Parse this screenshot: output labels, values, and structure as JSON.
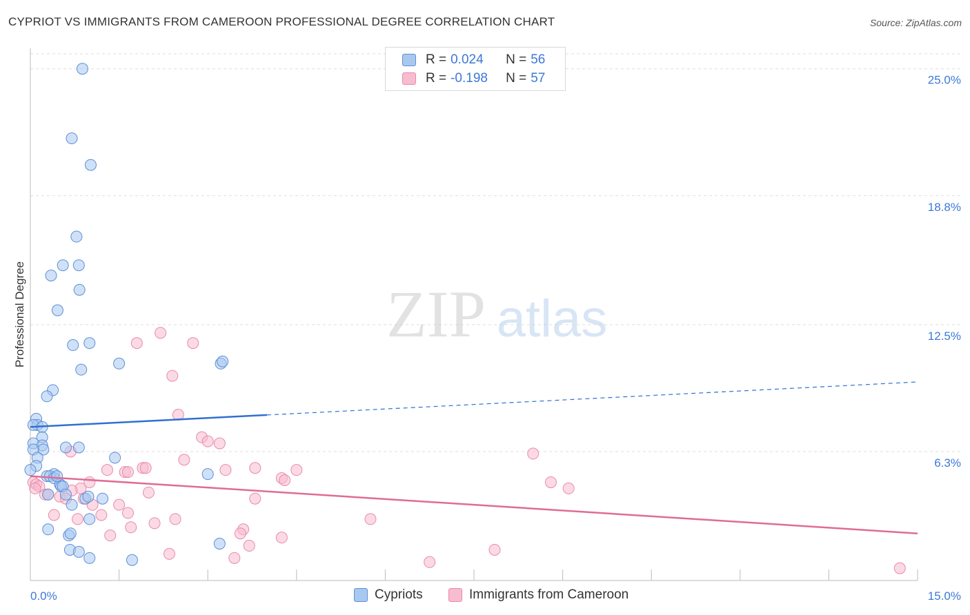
{
  "title": "CYPRIOT VS IMMIGRANTS FROM CAMEROON PROFESSIONAL DEGREE CORRELATION CHART",
  "source": "Source: ZipAtlas.com",
  "watermark": {
    "zip": "ZIP",
    "atlas": "atlas"
  },
  "legend": {
    "r_label": "R =",
    "n_label": "N =",
    "cypriots": {
      "r": "0.024",
      "n": "56"
    },
    "cameroon": {
      "r": "-0.198",
      "n": "57"
    }
  },
  "colors": {
    "blue_fill": "#a9c8f0",
    "blue_stroke": "#5b8fd6",
    "blue_line": "#2f6fd1",
    "pink_fill": "#f7bcd0",
    "pink_stroke": "#e88aa8",
    "pink_line": "#e06b97",
    "axis_text": "#3c78d8"
  },
  "chart_data": {
    "type": "scatter",
    "title": "CYPRIOT VS IMMIGRANTS FROM CAMEROON PROFESSIONAL DEGREE CORRELATION CHART",
    "xlabel": "",
    "ylabel": "Professional Degree",
    "xlim": [
      0,
      15
    ],
    "ylim": [
      0,
      26
    ],
    "x_ticks": [
      "0.0%",
      "15.0%"
    ],
    "y_ticks": [
      {
        "value": 6.3,
        "label": "6.3%"
      },
      {
        "value": 12.5,
        "label": "12.5%"
      },
      {
        "value": 18.8,
        "label": "18.8%"
      },
      {
        "value": 25.0,
        "label": "25.0%"
      }
    ],
    "grid": true,
    "legend_position": "top-center",
    "series": [
      {
        "name": "Cypriots",
        "r": 0.024,
        "n": 56,
        "trend": {
          "x0": 0,
          "y0": 7.5,
          "x1": 15,
          "y1": 9.7,
          "solid_until": 4
        },
        "points": [
          [
            0.88,
            25.0
          ],
          [
            0.7,
            21.6
          ],
          [
            1.02,
            20.3
          ],
          [
            0.78,
            16.8
          ],
          [
            0.55,
            15.4
          ],
          [
            0.82,
            15.4
          ],
          [
            0.35,
            14.9
          ],
          [
            0.83,
            14.2
          ],
          [
            0.46,
            13.2
          ],
          [
            1.0,
            11.6
          ],
          [
            0.72,
            11.5
          ],
          [
            0.86,
            10.3
          ],
          [
            1.5,
            10.6
          ],
          [
            3.22,
            10.6
          ],
          [
            3.25,
            10.7
          ],
          [
            0.38,
            9.3
          ],
          [
            0.28,
            9.0
          ],
          [
            0.1,
            7.9
          ],
          [
            0.12,
            7.6
          ],
          [
            0.05,
            7.6
          ],
          [
            0.2,
            7.5
          ],
          [
            0.2,
            7.0
          ],
          [
            0.05,
            6.7
          ],
          [
            0.2,
            6.6
          ],
          [
            0.22,
            6.4
          ],
          [
            0.05,
            6.4
          ],
          [
            0.6,
            6.5
          ],
          [
            0.82,
            6.5
          ],
          [
            0.12,
            6.0
          ],
          [
            1.43,
            6.0
          ],
          [
            0.1,
            5.6
          ],
          [
            0.4,
            5.2
          ],
          [
            0.28,
            5.1
          ],
          [
            0.33,
            5.1
          ],
          [
            0.4,
            5.0
          ],
          [
            0.5,
            4.7
          ],
          [
            0.52,
            4.6
          ],
          [
            0.55,
            4.6
          ],
          [
            0.3,
            4.2
          ],
          [
            0.6,
            4.2
          ],
          [
            0.93,
            4.0
          ],
          [
            0.98,
            4.1
          ],
          [
            1.22,
            4.0
          ],
          [
            0.7,
            3.7
          ],
          [
            3.0,
            5.2
          ],
          [
            0.3,
            2.5
          ],
          [
            1.0,
            3.0
          ],
          [
            0.65,
            2.2
          ],
          [
            0.68,
            2.3
          ],
          [
            0.67,
            1.5
          ],
          [
            0.82,
            1.4
          ],
          [
            1.0,
            1.1
          ],
          [
            1.72,
            1.0
          ],
          [
            3.2,
            1.8
          ],
          [
            0.45,
            5.1
          ],
          [
            0.0,
            5.4
          ]
        ]
      },
      {
        "name": "Immigrants from Cameroon",
        "r": -0.198,
        "n": 57,
        "trend": {
          "x0": 0,
          "y0": 5.1,
          "x1": 15,
          "y1": 2.3
        },
        "points": [
          [
            2.2,
            12.1
          ],
          [
            1.8,
            11.6
          ],
          [
            2.75,
            11.6
          ],
          [
            2.4,
            10.0
          ],
          [
            2.5,
            8.1
          ],
          [
            2.9,
            7.0
          ],
          [
            3.0,
            6.8
          ],
          [
            3.2,
            6.7
          ],
          [
            0.68,
            6.3
          ],
          [
            2.6,
            5.9
          ],
          [
            1.9,
            5.5
          ],
          [
            1.95,
            5.5
          ],
          [
            1.6,
            5.3
          ],
          [
            1.65,
            5.3
          ],
          [
            1.3,
            5.4
          ],
          [
            3.3,
            5.4
          ],
          [
            3.8,
            5.5
          ],
          [
            4.5,
            5.4
          ],
          [
            4.25,
            5.0
          ],
          [
            4.3,
            4.9
          ],
          [
            8.5,
            6.2
          ],
          [
            8.8,
            4.8
          ],
          [
            9.1,
            4.5
          ],
          [
            1.0,
            4.8
          ],
          [
            0.85,
            4.5
          ],
          [
            0.05,
            4.8
          ],
          [
            0.1,
            4.7
          ],
          [
            0.15,
            4.6
          ],
          [
            0.25,
            4.2
          ],
          [
            0.3,
            4.2
          ],
          [
            0.5,
            4.1
          ],
          [
            0.9,
            4.0
          ],
          [
            1.05,
            3.7
          ],
          [
            1.5,
            3.7
          ],
          [
            2.0,
            4.3
          ],
          [
            3.8,
            4.0
          ],
          [
            0.4,
            3.2
          ],
          [
            0.8,
            3.0
          ],
          [
            1.2,
            3.2
          ],
          [
            1.65,
            3.3
          ],
          [
            2.1,
            2.8
          ],
          [
            2.45,
            3.0
          ],
          [
            1.7,
            2.6
          ],
          [
            1.35,
            2.2
          ],
          [
            3.6,
            2.5
          ],
          [
            3.55,
            2.3
          ],
          [
            5.75,
            3.0
          ],
          [
            4.25,
            2.1
          ],
          [
            3.7,
            1.7
          ],
          [
            2.35,
            1.3
          ],
          [
            3.45,
            1.1
          ],
          [
            6.75,
            0.9
          ],
          [
            7.85,
            1.5
          ],
          [
            14.7,
            0.6
          ],
          [
            0.6,
            4.0
          ],
          [
            0.7,
            4.4
          ],
          [
            0.08,
            4.5
          ]
        ]
      }
    ]
  }
}
